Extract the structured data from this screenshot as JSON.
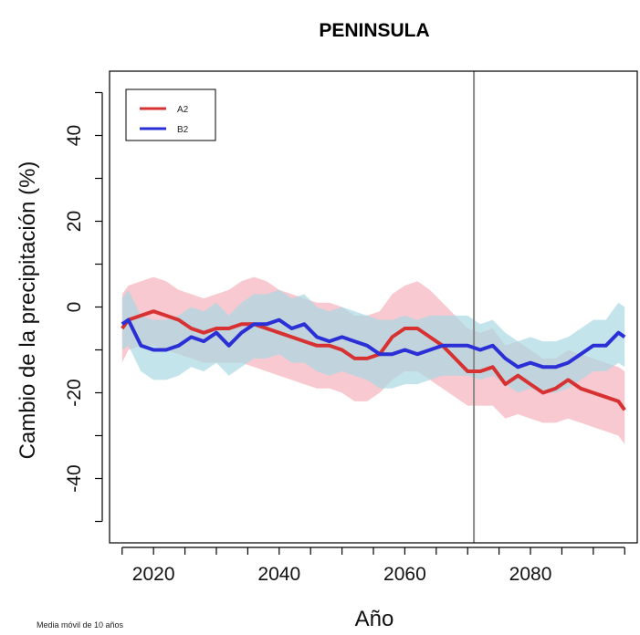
{
  "chart_data": {
    "type": "area",
    "title": "PENINSULA",
    "xlabel": "Año",
    "ylabel": "Cambio de la precipitación (%)",
    "footnote": "Media móvil de 10 años",
    "xlim": [
      2013,
      2097
    ],
    "ylim": [
      -55,
      55
    ],
    "xticks_labeled": [
      2020,
      2040,
      2060,
      2080
    ],
    "xticks_minor": [
      2015,
      2025,
      2030,
      2035,
      2045,
      2050,
      2055,
      2065,
      2070,
      2075,
      2085,
      2090,
      2095
    ],
    "yticks_labeled": [
      -40,
      -20,
      0,
      20,
      40
    ],
    "yticks_minor": [
      -50,
      -30,
      -10,
      10,
      30,
      50
    ],
    "vertical_line": 2071,
    "legend_position": "top-left",
    "colors": {
      "A2_line": "#d73131",
      "A2_band": "#f5b7c0",
      "B2_line": "#2b2fd6",
      "B2_band": "#a9d9e3",
      "vline": "#888888",
      "axis": "#000000"
    },
    "series": [
      {
        "name": "A2",
        "x": [
          2015,
          2016,
          2018,
          2020,
          2022,
          2024,
          2026,
          2028,
          2030,
          2032,
          2034,
          2036,
          2038,
          2040,
          2042,
          2044,
          2046,
          2048,
          2050,
          2052,
          2054,
          2056,
          2058,
          2060,
          2062,
          2064,
          2066,
          2068,
          2070,
          2072,
          2074,
          2076,
          2078,
          2080,
          2082,
          2084,
          2086,
          2088,
          2090,
          2092,
          2094,
          2095
        ],
        "y": [
          -5,
          -3,
          -2,
          -1,
          -2,
          -3,
          -5,
          -6,
          -5,
          -5,
          -4,
          -4,
          -5,
          -6,
          -7,
          -8,
          -9,
          -9,
          -10,
          -12,
          -12,
          -11,
          -7,
          -5,
          -5,
          -7,
          -9,
          -12,
          -15,
          -15,
          -14,
          -18,
          -16,
          -18,
          -20,
          -19,
          -17,
          -19,
          -20,
          -21,
          -22,
          -24
        ],
        "lower": [
          -13,
          -10,
          -9,
          -9,
          -10,
          -11,
          -12,
          -13,
          -13,
          -13,
          -13,
          -14,
          -15,
          -16,
          -17,
          -18,
          -19,
          -19,
          -20,
          -22,
          -22,
          -20,
          -17,
          -15,
          -15,
          -17,
          -19,
          -21,
          -23,
          -23,
          -23,
          -26,
          -25,
          -26,
          -27,
          -27,
          -26,
          -27,
          -28,
          -29,
          -30,
          -32
        ],
        "upper": [
          3,
          5,
          6,
          7,
          6,
          4,
          3,
          2,
          3,
          4,
          6,
          7,
          6,
          4,
          3,
          2,
          1,
          1,
          0,
          -2,
          -2,
          -1,
          3,
          5,
          6,
          4,
          1,
          -2,
          -5,
          -6,
          -5,
          -9,
          -8,
          -10,
          -12,
          -12,
          -10,
          -11,
          -12,
          -13,
          -14,
          -15
        ]
      },
      {
        "name": "B2",
        "x": [
          2015,
          2016,
          2018,
          2020,
          2022,
          2024,
          2026,
          2028,
          2030,
          2032,
          2034,
          2036,
          2038,
          2040,
          2042,
          2044,
          2046,
          2048,
          2050,
          2052,
          2054,
          2056,
          2058,
          2060,
          2062,
          2064,
          2066,
          2068,
          2070,
          2072,
          2074,
          2076,
          2078,
          2080,
          2082,
          2084,
          2086,
          2088,
          2090,
          2092,
          2094,
          2095
        ],
        "y": [
          -4,
          -3,
          -9,
          -10,
          -10,
          -9,
          -7,
          -8,
          -6,
          -9,
          -6,
          -4,
          -4,
          -3,
          -5,
          -4,
          -7,
          -8,
          -7,
          -8,
          -9,
          -11,
          -11,
          -10,
          -11,
          -10,
          -9,
          -9,
          -9,
          -10,
          -9,
          -12,
          -14,
          -13,
          -14,
          -14,
          -13,
          -11,
          -9,
          -9,
          -6,
          -7
        ],
        "lower": [
          -10,
          -9,
          -15,
          -17,
          -17,
          -16,
          -14,
          -15,
          -13,
          -16,
          -14,
          -12,
          -12,
          -11,
          -13,
          -13,
          -15,
          -16,
          -15,
          -16,
          -17,
          -19,
          -19,
          -18,
          -18,
          -17,
          -16,
          -16,
          -16,
          -17,
          -16,
          -18,
          -20,
          -19,
          -20,
          -20,
          -19,
          -17,
          -15,
          -15,
          -13,
          -14
        ],
        "upper": [
          2,
          4,
          -2,
          -3,
          -3,
          -2,
          0,
          -1,
          1,
          -2,
          1,
          3,
          3,
          4,
          2,
          3,
          0,
          -1,
          0,
          -1,
          -2,
          -3,
          -3,
          -2,
          -3,
          -2,
          -2,
          -2,
          -2,
          -4,
          -3,
          -6,
          -8,
          -7,
          -8,
          -8,
          -7,
          -5,
          -3,
          -3,
          1,
          0
        ]
      }
    ]
  }
}
